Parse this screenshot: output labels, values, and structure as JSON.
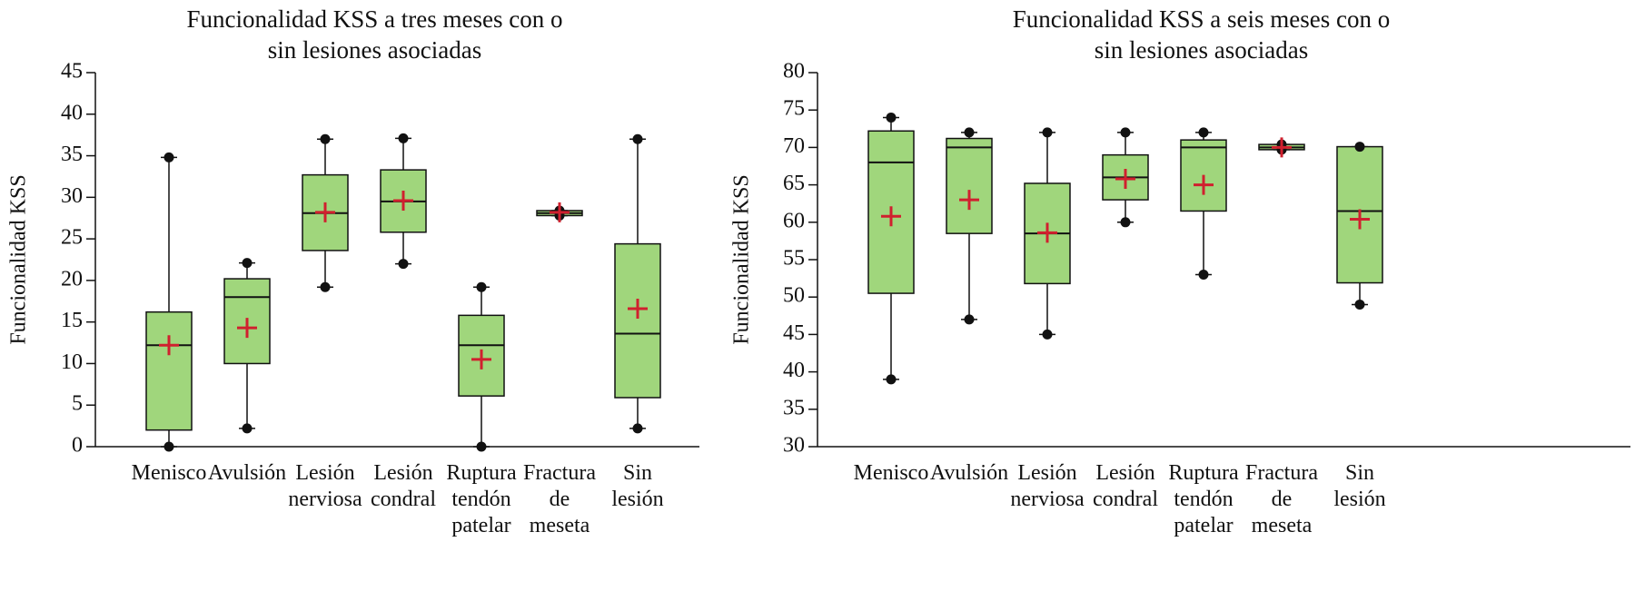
{
  "chart_data": [
    {
      "type": "box",
      "title": [
        "Funcionalidad KSS a tres meses con o",
        "sin lesiones asociadas"
      ],
      "ylabel": "Funcionalidad KSS",
      "categories": [
        "Menisco",
        "Avulsión",
        "Lesión nerviosa",
        "Lesión condral",
        "Ruptura tendón patelar",
        "Fractura de meseta",
        "Sin lesión"
      ],
      "color": "#a0d67c",
      "mean_color": "#d0202e",
      "ylim": [
        0,
        45
      ],
      "yticks": [
        0,
        5,
        10,
        15,
        20,
        25,
        30,
        35,
        40,
        45
      ],
      "boxes": [
        {
          "min": 0,
          "q1": 2,
          "median": 12.2,
          "q3": 16.2,
          "max": 34.8,
          "mean": 12.2
        },
        {
          "min": 2.2,
          "q1": 10,
          "median": 18,
          "q3": 20.2,
          "max": 22.1,
          "mean": 14.3
        },
        {
          "min": 19.2,
          "q1": 23.6,
          "median": 28.1,
          "q3": 32.7,
          "max": 37,
          "mean": 28.2
        },
        {
          "min": 22,
          "q1": 25.8,
          "median": 29.5,
          "q3": 33.3,
          "max": 37.1,
          "mean": 29.6
        },
        {
          "min": 0,
          "q1": 6.1,
          "median": 12.2,
          "q3": 15.8,
          "max": 19.2,
          "mean": 10.5
        },
        {
          "min": 27.8,
          "q1": 27.8,
          "median": 28.1,
          "q3": 28.4,
          "max": 28.4,
          "mean": 28.2
        },
        {
          "min": 2.2,
          "q1": 5.9,
          "median": 13.6,
          "q3": 24.4,
          "max": 37,
          "mean": 16.6
        }
      ]
    },
    {
      "type": "box",
      "title": [
        "Funcionalidad KSS a seis meses con o",
        "sin lesiones asociadas"
      ],
      "ylabel": "Funcionalidad KSS",
      "categories": [
        "Menisco",
        "Avulsión",
        "Lesión nerviosa",
        "Lesión condral",
        "Ruptura tendón patelar",
        "Fractura de meseta",
        "Sin lesión"
      ],
      "color": "#a0d67c",
      "mean_color": "#d0202e",
      "ylim": [
        30,
        80
      ],
      "yticks": [
        30,
        35,
        40,
        45,
        50,
        55,
        60,
        65,
        70,
        75,
        80
      ],
      "boxes": [
        {
          "min": 39,
          "q1": 50.5,
          "median": 68,
          "q3": 72.2,
          "max": 74,
          "mean": 60.8
        },
        {
          "min": 47,
          "q1": 58.5,
          "median": 70,
          "q3": 71.2,
          "max": 72,
          "mean": 63
        },
        {
          "min": 45,
          "q1": 51.8,
          "median": 58.5,
          "q3": 65.2,
          "max": 72,
          "mean": 58.6
        },
        {
          "min": 60,
          "q1": 63,
          "median": 66,
          "q3": 69,
          "max": 72,
          "mean": 65.8
        },
        {
          "min": 53,
          "q1": 61.5,
          "median": 70,
          "q3": 71,
          "max": 72,
          "mean": 65
        },
        {
          "min": 69.7,
          "q1": 69.7,
          "median": 70,
          "q3": 70.4,
          "max": 70.4,
          "mean": 70
        },
        {
          "min": 49,
          "q1": 51.9,
          "median": 61.5,
          "q3": 70.1,
          "max": 70.1,
          "mean": 60.4
        }
      ]
    }
  ]
}
